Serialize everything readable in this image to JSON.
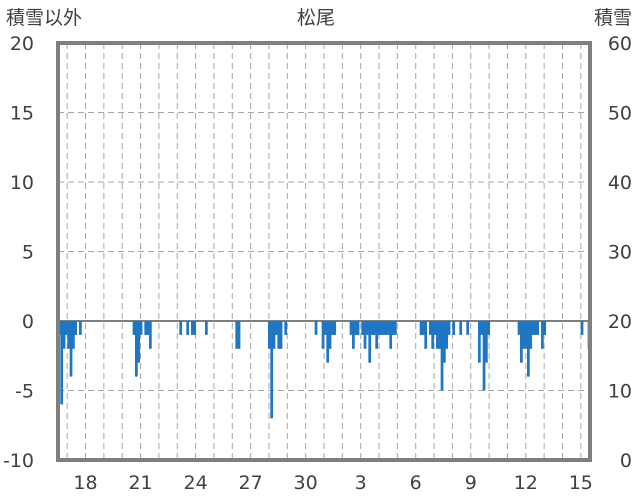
{
  "chart_data": {
    "type": "bar",
    "title": "松尾",
    "ylabel_left": "積雪以外",
    "ylabel_right": "積雪",
    "ylim_left": [
      -10,
      20
    ],
    "ylim_right": [
      0,
      60
    ],
    "yticks_left": [
      "20",
      "15",
      "10",
      "5",
      "0",
      "-5",
      "-10"
    ],
    "yticks_right": [
      "60",
      "50",
      "40",
      "30",
      "20",
      "10",
      "0"
    ],
    "x_ticks": [
      "18",
      "21",
      "24",
      "27",
      "30",
      "3",
      "6",
      "9",
      "12",
      "15"
    ],
    "days": 29,
    "bar_color": "#1f77c4",
    "values": [
      -1,
      -6,
      -2,
      -1,
      -2,
      -4,
      -2,
      -1,
      0,
      -1,
      0,
      0,
      0,
      0,
      0,
      0,
      0,
      0,
      0,
      0,
      0,
      0,
      0,
      0,
      0,
      0,
      0,
      0,
      0,
      0,
      0,
      0,
      -1,
      -4,
      -3,
      -1,
      0,
      -1,
      -1,
      -2,
      0,
      0,
      0,
      0,
      0,
      0,
      0,
      0,
      0,
      0,
      0,
      0,
      -1,
      0,
      0,
      -1,
      0,
      -1,
      -1,
      0,
      0,
      0,
      0,
      -1,
      0,
      0,
      0,
      0,
      0,
      0,
      0,
      0,
      0,
      0,
      0,
      0,
      -2,
      -2,
      0,
      0,
      0,
      0,
      0,
      0,
      0,
      0,
      0,
      0,
      0,
      0,
      -2,
      -7,
      -2,
      -1,
      -2,
      -2,
      0,
      -1,
      0,
      0,
      0,
      0,
      0,
      0,
      0,
      0,
      0,
      0,
      0,
      0,
      -1,
      0,
      0,
      -2,
      -1,
      -3,
      -2,
      -1,
      -1,
      0,
      0,
      0,
      0,
      0,
      0,
      -1,
      -2,
      -1,
      -1,
      0,
      -1,
      -2,
      -1,
      -3,
      -1,
      -1,
      -2,
      -1,
      -1,
      -1,
      -1,
      -1,
      -2,
      -1,
      -1,
      0,
      0,
      0,
      0,
      0,
      0,
      0,
      0,
      0,
      0,
      -1,
      -1,
      -2,
      0,
      -1,
      -2,
      -1,
      -2,
      -2,
      -5,
      -3,
      -2,
      -1,
      0,
      -1,
      0,
      0,
      -1,
      0,
      0,
      -1,
      0,
      0,
      0,
      0,
      -3,
      -1,
      -5,
      -3,
      -1,
      0,
      0,
      0,
      0,
      0,
      0,
      0,
      0,
      0,
      0,
      0,
      0,
      -1,
      -3,
      -2,
      -2,
      -4,
      -2,
      -1,
      -1,
      -1,
      0,
      -2,
      -1,
      0,
      0,
      0,
      0,
      0,
      0,
      0,
      0,
      0,
      0,
      0,
      0,
      0,
      0,
      0,
      -1,
      0,
      0,
      -2
    ]
  }
}
